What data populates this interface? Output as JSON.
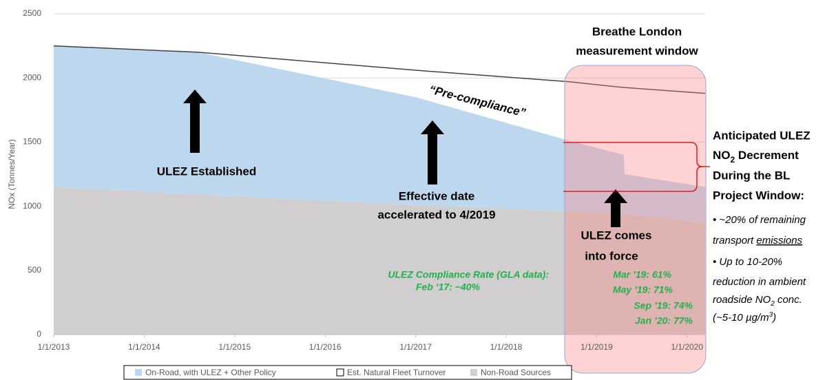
{
  "chart_data": {
    "type": "area",
    "y_label": "NOx (Tonnes/Year)",
    "x": [
      2013,
      2014.6,
      2017,
      2018.7,
      2019.3,
      2019.31,
      2020.2
    ],
    "xlim": [
      2013,
      2020.2
    ],
    "xticks": [
      {
        "value": 2013,
        "label": "1/1/2013"
      },
      {
        "value": 2014,
        "label": "1/1/2014"
      },
      {
        "value": 2015,
        "label": "1/1/2015"
      },
      {
        "value": 2016,
        "label": "1/1/2016"
      },
      {
        "value": 2017,
        "label": "1/1/2017"
      },
      {
        "value": 2018,
        "label": "1/1/2018"
      },
      {
        "value": 2019,
        "label": "1/1/2019"
      },
      {
        "value": 2020,
        "label": "1/1/2020"
      }
    ],
    "ylim": [
      0,
      2500
    ],
    "yticks": [
      0,
      500,
      1000,
      1500,
      2000,
      2500
    ],
    "grid": true,
    "stacked": true,
    "series": [
      {
        "name": "On-Road, with ULEZ + Other Policy",
        "color": "#bdd7ee",
        "type": "area",
        "values": [
          1100,
          1110,
          840,
          550,
          460,
          310,
          280
        ]
      },
      {
        "name": "Est. Natural Fleet Turnover",
        "color": "#404040",
        "type": "line",
        "values": [
          2250,
          2200,
          2060,
          1970,
          1925,
          1925,
          1880
        ]
      },
      {
        "name": "Non-Road Sources",
        "color": "#d0cece",
        "type": "area",
        "values": [
          1150,
          1090,
          1010,
          960,
          940,
          940,
          870
        ]
      }
    ],
    "annotations": {
      "window": [
        "Breathe London",
        "measurement window"
      ],
      "pre_compliance": "“Pre-compliance”",
      "established": "ULEZ Established",
      "effective": [
        "Effective date",
        "accelerated to 4/2019"
      ],
      "force": [
        "ULEZ comes",
        "into force"
      ],
      "compliance": [
        "ULEZ Compliance Rate (GLA data):",
        "Feb ‘17: ~40%",
        "Mar ’19: 61%",
        "May ’19: 71%",
        "Sep ’19: 74%",
        "Jan ’20: 77%"
      ],
      "decrement": [
        "Anticipated ULEZ",
        "NO",
        "2",
        " Decrement",
        "During the BL",
        "Project Window:"
      ],
      "bullets": [
        "• ~20% of remaining",
        "transport ",
        "emissions",
        "• Up to 10-20%",
        "reduction in ambient",
        "roadside NO",
        "2",
        " conc.",
        "(~5-10 µg/m",
        "3",
        ")"
      ]
    }
  }
}
